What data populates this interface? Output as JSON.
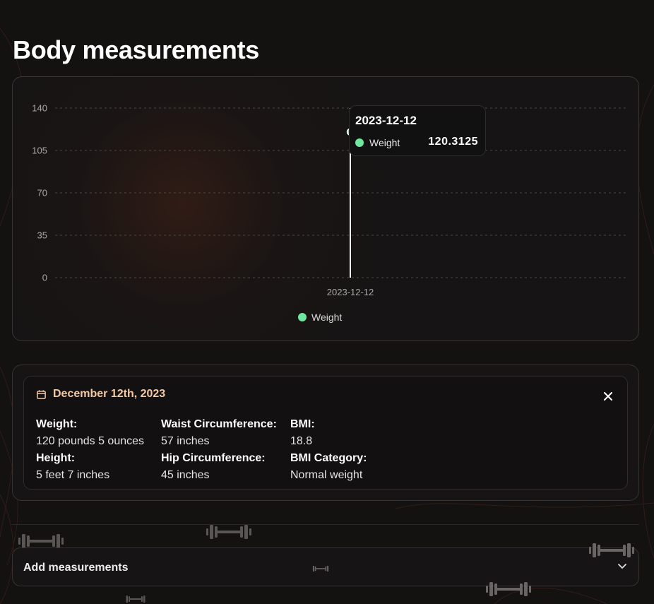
{
  "page": {
    "title": "Body measurements"
  },
  "chart_data": {
    "type": "line",
    "x": [
      "2023-12-12"
    ],
    "series": [
      {
        "name": "Weight",
        "values": [
          120.3125
        ],
        "color": "#6ee7a0"
      }
    ],
    "ylim": [
      0,
      140
    ],
    "yticks": [
      "140",
      "105",
      "70",
      "35",
      "0"
    ],
    "xticks": [
      "2023-12-12"
    ],
    "grid": true,
    "legend": "bottom-center",
    "tooltip": {
      "date": "2023-12-12",
      "series": "Weight",
      "value": "120.3125"
    }
  },
  "details": {
    "date": "December 12th, 2023",
    "close_icon": "close-icon",
    "fields": [
      {
        "label": "Weight:",
        "value": "120 pounds 5 ounces"
      },
      {
        "label": "Height:",
        "value": "5 feet 7 inches"
      },
      {
        "label": "Waist Circumference:",
        "value": "57 inches"
      },
      {
        "label": "Hip Circumference:",
        "value": "45 inches"
      },
      {
        "label": "BMI:",
        "value": "18.8"
      },
      {
        "label": "BMI Category:",
        "value": "Normal weight"
      }
    ]
  },
  "add_measurements": {
    "label": "Add measurements",
    "icon": "chevron-down-icon"
  },
  "colors": {
    "accent": "#6ee7a0",
    "date": "#f4c9a3",
    "background": "#141111"
  }
}
